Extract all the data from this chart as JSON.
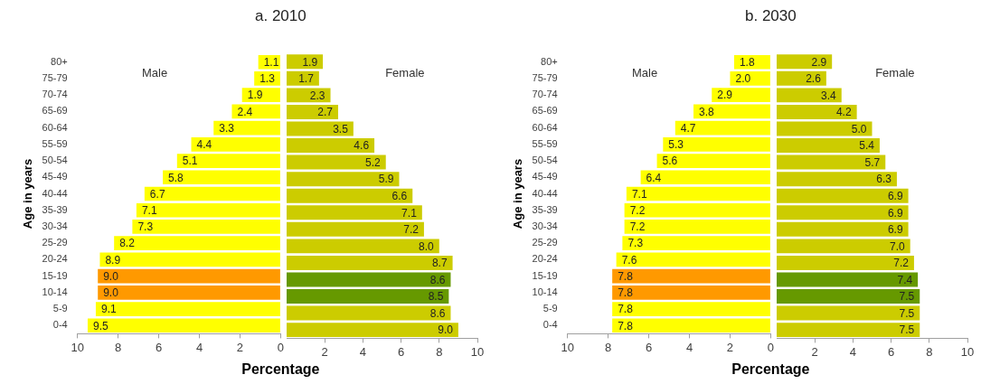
{
  "chart_data": [
    {
      "type": "bar",
      "orientation": "horizontal",
      "title": "a. 2010",
      "xlabel": "Percentage",
      "ylabel": "Age in years",
      "categories": [
        "80+",
        "75-79",
        "70-74",
        "65-69",
        "60-64",
        "55-59",
        "50-54",
        "45-49",
        "40-44",
        "35-39",
        "30-34",
        "25-29",
        "20-24",
        "15-19",
        "10-14",
        "5-9",
        "0-4"
      ],
      "xlim": [
        10,
        0
      ],
      "xticks": [
        10,
        8,
        6,
        4,
        2,
        0
      ],
      "series": [
        {
          "name": "Male",
          "values": [
            1.1,
            1.3,
            1.9,
            2.4,
            3.3,
            4.4,
            5.1,
            5.8,
            6.7,
            7.1,
            7.3,
            8.2,
            8.9,
            9.0,
            9.0,
            9.1,
            9.5
          ],
          "value_labels": [
            "1.1",
            "1.3",
            "1.9",
            "2.4",
            "3.3",
            "4.4",
            "5.1",
            "5.8",
            "6.7",
            "7.1",
            "7.3",
            "8.2",
            "8.9",
            "9.0",
            "9.0",
            "9.1",
            "9.5"
          ],
          "colors": [
            "#ffff00",
            "#ffff00",
            "#ffff00",
            "#ffff00",
            "#ffff00",
            "#ffff00",
            "#ffff00",
            "#ffff00",
            "#ffff00",
            "#ffff00",
            "#ffff00",
            "#ffff00",
            "#ffff00",
            "#ff9900",
            "#ff9900",
            "#ffff00",
            "#ffff00"
          ]
        }
      ]
    },
    {
      "type": "bar",
      "orientation": "horizontal",
      "tick_labels": "x",
      "categories": [
        null,
        null,
        null,
        null,
        null,
        null,
        null,
        null,
        null,
        null,
        null,
        null,
        null,
        null,
        null,
        null,
        null
      ],
      "xlim": [
        0,
        10
      ],
      "xticks": [
        2,
        4,
        6,
        8,
        10
      ],
      "series": [
        {
          "name": "Female",
          "values": [
            1.9,
            1.7,
            2.3,
            2.7,
            3.5,
            4.6,
            5.2,
            5.9,
            6.6,
            7.1,
            7.2,
            8.0,
            8.7,
            8.6,
            8.5,
            8.6,
            9.0
          ],
          "value_labels": [
            "1.9",
            "1.7",
            "2.3",
            "2.7",
            "3.5",
            "4.6",
            "5.2",
            "5.9",
            "6.6",
            "7.1",
            "7.2",
            "8.0",
            "8.7",
            "8.6",
            "8.5",
            "8.6",
            "9.0"
          ],
          "colors": [
            "#cccc00",
            "#cccc00",
            "#cccc00",
            "#cccc00",
            "#cccc00",
            "#cccc00",
            "#cccc00",
            "#cccc00",
            "#cccc00",
            "#cccc00",
            "#cccc00",
            "#cccc00",
            "#cccc00",
            "#669900",
            "#669900",
            "#cccc00",
            "#cccc00"
          ]
        }
      ]
    },
    {
      "type": "bar",
      "orientation": "horizontal",
      "title": "b. 2030",
      "xlabel": "Percentage",
      "ylabel": "Age in years",
      "categories": [
        "80+",
        "75-79",
        "70-74",
        "65-69",
        "60-64",
        "55-59",
        "50-54",
        "45-49",
        "40-44",
        "35-39",
        "30-34",
        "25-29",
        "20-24",
        "15-19",
        "10-14",
        "5-9",
        "0-4"
      ],
      "xlim": [
        10,
        0
      ],
      "xticks": [
        10,
        8,
        6,
        4,
        2,
        0
      ],
      "series": [
        {
          "name": "Male",
          "values": [
            1.8,
            2.0,
            2.9,
            3.8,
            4.7,
            5.3,
            5.6,
            6.4,
            7.1,
            7.2,
            7.2,
            7.3,
            7.6,
            7.8,
            7.8,
            7.8,
            7.8
          ],
          "value_labels": [
            "1.8",
            "2.0",
            "2.9",
            "3.8",
            "4.7",
            "5.3",
            "5.6",
            "6.4",
            "7.1",
            "7.2",
            "7.2",
            "7.3",
            "7.6",
            "7.8",
            "7.8",
            "7.8",
            "7.8"
          ],
          "colors": [
            "#ffff00",
            "#ffff00",
            "#ffff00",
            "#ffff00",
            "#ffff00",
            "#ffff00",
            "#ffff00",
            "#ffff00",
            "#ffff00",
            "#ffff00",
            "#ffff00",
            "#ffff00",
            "#ffff00",
            "#ff9900",
            "#ff9900",
            "#ffff00",
            "#ffff00"
          ]
        }
      ]
    },
    {
      "type": "bar",
      "orientation": "horizontal",
      "tick_labels": "x",
      "categories": [
        null,
        null,
        null,
        null,
        null,
        null,
        null,
        null,
        null,
        null,
        null,
        null,
        null,
        null,
        null,
        null,
        null
      ],
      "xlim": [
        0,
        10
      ],
      "xticks": [
        2,
        4,
        6,
        8,
        10
      ],
      "series": [
        {
          "name": "Female",
          "values": [
            2.9,
            2.6,
            3.4,
            4.2,
            5.0,
            5.4,
            5.7,
            6.3,
            6.9,
            6.9,
            6.9,
            7.0,
            7.2,
            7.4,
            7.5,
            7.5,
            7.5
          ],
          "value_labels": [
            "2.9",
            "2.6",
            "3.4",
            "4.2",
            "5.0",
            "5.4",
            "5.7",
            "6.3",
            "6.9",
            "6.9",
            "6.9",
            "7.0",
            "7.2",
            "7.4",
            "7.5",
            "7.5",
            "7.5"
          ],
          "colors": [
            "#cccc00",
            "#cccc00",
            "#cccc00",
            "#cccc00",
            "#cccc00",
            "#cccc00",
            "#cccc00",
            "#cccc00",
            "#cccc00",
            "#cccc00",
            "#cccc00",
            "#cccc00",
            "#cccc00",
            "#669900",
            "#669900",
            "#cccc00",
            "#cccc00"
          ]
        }
      ]
    }
  ]
}
